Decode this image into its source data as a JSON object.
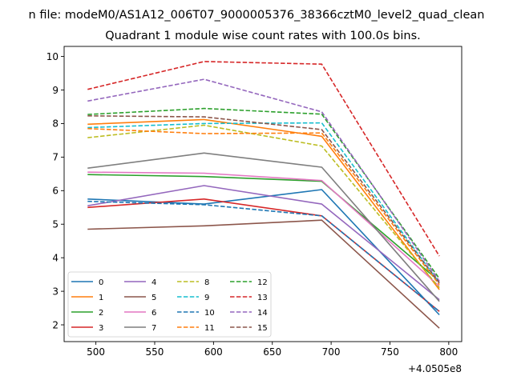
{
  "chart_data": {
    "type": "line",
    "suptitle": "n file: modeM0/AS1A12_006T07_9000005376_38366cztM0_level2_quad_clean",
    "title": "Quadrant 1 module wise count rates with 100.0s bins.",
    "xlabel": "",
    "ylabel": "",
    "x_offset_label": "+4.0505e8",
    "x": [
      493,
      592,
      692,
      792
    ],
    "xlim": [
      473,
      811
    ],
    "ylim": [
      1.5,
      10.3
    ],
    "xticks": [
      500,
      550,
      600,
      650,
      700,
      750,
      800
    ],
    "yticks": [
      2,
      3,
      4,
      5,
      6,
      7,
      8,
      9,
      10
    ],
    "grid": false,
    "legend": {
      "position": "lower-left",
      "columns": 4
    },
    "series": [
      {
        "name": "0",
        "color": "#1f77b4",
        "dash": "solid",
        "values": [
          5.75,
          5.6,
          6.03,
          2.3
        ]
      },
      {
        "name": "1",
        "color": "#ff7f0e",
        "dash": "solid",
        "values": [
          7.98,
          8.12,
          7.62,
          3.05
        ]
      },
      {
        "name": "2",
        "color": "#2ca02c",
        "dash": "solid",
        "values": [
          6.48,
          6.42,
          6.28,
          3.3
        ]
      },
      {
        "name": "3",
        "color": "#d62728",
        "dash": "solid",
        "values": [
          5.5,
          5.75,
          5.25,
          2.4
        ]
      },
      {
        "name": "4",
        "color": "#9467bd",
        "dash": "solid",
        "values": [
          5.55,
          6.15,
          5.6,
          2.75
        ]
      },
      {
        "name": "5",
        "color": "#8c564b",
        "dash": "solid",
        "values": [
          4.85,
          4.95,
          5.12,
          1.9
        ]
      },
      {
        "name": "6",
        "color": "#e377c2",
        "dash": "solid",
        "values": [
          6.55,
          6.52,
          6.3,
          3.15
        ]
      },
      {
        "name": "7",
        "color": "#7f7f7f",
        "dash": "solid",
        "values": [
          6.67,
          7.12,
          6.7,
          2.7
        ]
      },
      {
        "name": "8",
        "color": "#bcbd22",
        "dash": "dashed",
        "values": [
          7.58,
          7.95,
          7.33,
          3.1
        ]
      },
      {
        "name": "9",
        "color": "#17becf",
        "dash": "dashed",
        "values": [
          7.88,
          8.0,
          8.02,
          3.25
        ]
      },
      {
        "name": "10",
        "color": "#1f77b4",
        "dash": "dashed",
        "values": [
          5.68,
          5.58,
          5.25,
          2.4
        ]
      },
      {
        "name": "11",
        "color": "#ff7f0e",
        "dash": "dashed",
        "values": [
          7.85,
          7.7,
          7.72,
          3.2
        ]
      },
      {
        "name": "12",
        "color": "#2ca02c",
        "dash": "dashed",
        "values": [
          8.27,
          8.45,
          8.28,
          3.38
        ]
      },
      {
        "name": "13",
        "color": "#d62728",
        "dash": "dashed",
        "values": [
          9.02,
          9.85,
          9.77,
          4.05
        ]
      },
      {
        "name": "14",
        "color": "#9467bd",
        "dash": "dashed",
        "values": [
          8.67,
          9.32,
          8.35,
          3.3
        ]
      },
      {
        "name": "15",
        "color": "#8c564b",
        "dash": "dashed",
        "values": [
          8.23,
          8.2,
          7.82,
          3.25
        ]
      }
    ]
  }
}
